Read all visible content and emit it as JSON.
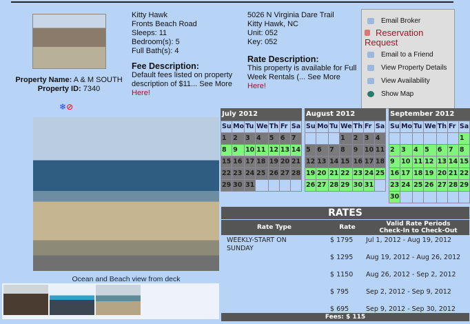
{
  "property": {
    "name_label": "Property Name:",
    "name": "A & M SOUTH",
    "id_label": "Property ID:",
    "id": "7340",
    "details": [
      "Kitty Hawk",
      "Fronts Beach Road",
      "Sleeps: 11",
      "Bedroom(s): 5",
      "Full Bath(s): 4"
    ],
    "fee_title": "Fee Description:",
    "fee_text": "Default fees listed on property description of $11... See More ",
    "fee_link": "Here!",
    "address": [
      "5026 N Virginia Dare Trail",
      "Kitty Hawk, NC",
      "Unit: 052",
      "Key: 052"
    ],
    "rate_title": "Rate Description:",
    "rate_text": "This property is available for Full Week Rentals (... See More ",
    "rate_link": "Here!",
    "photo_caption": "Ocean and Beach view from deck"
  },
  "menu": [
    "Email Broker",
    "Reservation Request",
    "Email to a Friend",
    "View Property Details",
    "View Availability",
    "Show Map"
  ],
  "calendar": {
    "weekdays": [
      "Su",
      "Mo",
      "Tu",
      "We",
      "Th",
      "Fr",
      "Sa"
    ],
    "months": [
      {
        "title": "July 2012",
        "first_weekday": 0,
        "days": 31,
        "available": [
          8,
          9,
          10,
          11,
          12,
          13,
          14
        ]
      },
      {
        "title": "August 2012",
        "first_weekday": 3,
        "days": 31,
        "available": [
          19,
          20,
          21,
          22,
          23,
          24,
          25,
          26,
          27,
          28,
          29,
          30,
          31
        ]
      },
      {
        "title": "September 2012",
        "first_weekday": 6,
        "days": 30,
        "available": [
          1,
          2,
          3,
          4,
          5,
          6,
          7,
          8,
          9,
          10,
          11,
          12,
          13,
          14,
          15,
          16,
          17,
          18,
          19,
          20,
          21,
          22,
          23,
          24,
          25,
          26,
          27,
          28,
          29,
          30
        ]
      }
    ],
    "colors": {
      "available": "#7ff57a",
      "booked": "#7a7a7a"
    }
  },
  "rates": {
    "title": "RATES",
    "headers": [
      "Rate Type",
      "Rate",
      "Valid Rate Periods Check-In to Check-Out"
    ],
    "type": "WEEKLY-START ON SUNDAY",
    "rows": [
      {
        "rate": "$ 1795",
        "period": "Jul 1, 2012 - Aug 19, 2012"
      },
      {
        "rate": "$ 1295",
        "period": "Aug 19, 2012 - Aug 26, 2012"
      },
      {
        "rate": "$ 1150",
        "period": "Aug 26, 2012 - Sep 2, 2012"
      },
      {
        "rate": "$ 795",
        "period": "Sep 2, 2012 - Sep 9, 2012"
      },
      {
        "rate": "$ 695",
        "period": "Sep 9, 2012 - Sep 30, 2012"
      }
    ],
    "fees": "Fees: $ 115"
  }
}
